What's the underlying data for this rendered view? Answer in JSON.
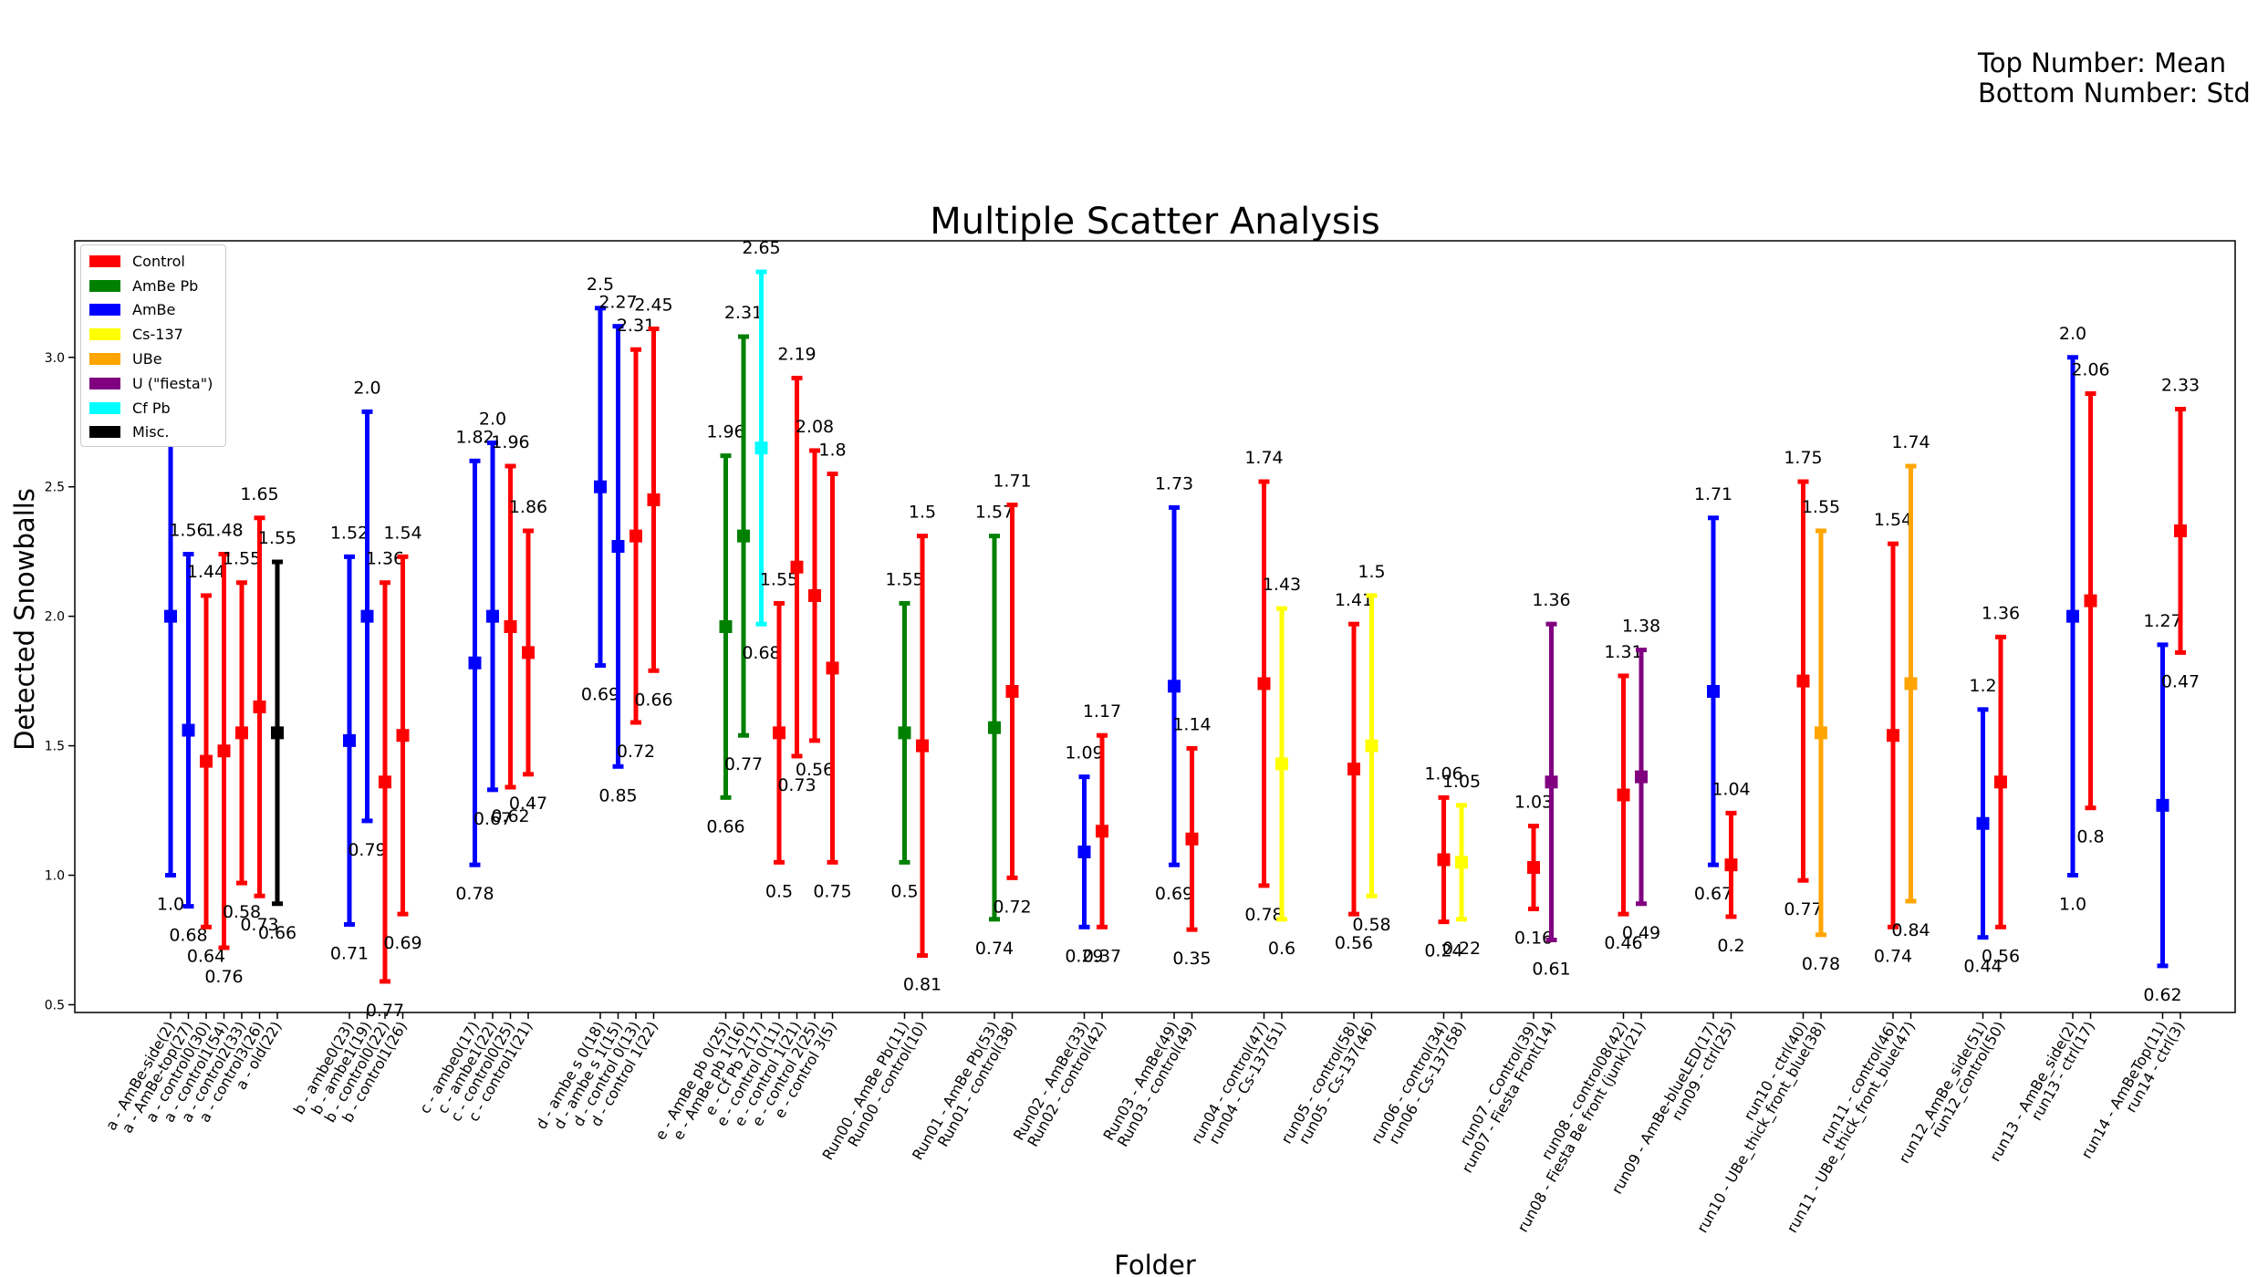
{
  "notes": {
    "line1": "Top Number: Mean",
    "line2": "Bottom Number: Std"
  },
  "legend": [
    {
      "label": "Control",
      "color": "#ff0000"
    },
    {
      "label": "AmBe Pb",
      "color": "#008000"
    },
    {
      "label": "AmBe",
      "color": "#0000ff"
    },
    {
      "label": "Cs-137",
      "color": "#ffff00"
    },
    {
      "label": "UBe",
      "color": "#ffa500"
    },
    {
      "label": "U (\"fiesta\")",
      "color": "#800080"
    },
    {
      "label": "Cf Pb",
      "color": "#00ffff"
    },
    {
      "label": "Misc.",
      "color": "#000000"
    }
  ],
  "chart_data": {
    "type": "scatter",
    "title": "Multiple Scatter Analysis",
    "xlabel": "Folder",
    "ylabel": "Detected Snowballs",
    "ylim": [
      0.47,
      3.45
    ],
    "yticks": [
      0.5,
      1.0,
      1.5,
      2.0,
      2.5,
      3.0
    ],
    "legend_position": "top-left",
    "grid": false,
    "points": [
      {
        "label": "a - AmBe-side(2)",
        "mean": 2.0,
        "std": 1.0,
        "color": "#0000ff",
        "mean_text": "2.0",
        "std_text": "1.0"
      },
      {
        "label": "a - AmBe-top(27)",
        "mean": 1.56,
        "std": 0.68,
        "color": "#0000ff",
        "mean_text": "1.56",
        "std_text": "0.68"
      },
      {
        "label": "a - control0(30)",
        "mean": 1.44,
        "std": 0.64,
        "color": "#ff0000",
        "mean_text": "1.44",
        "std_text": "0.64"
      },
      {
        "label": "a - control1(54)",
        "mean": 1.48,
        "std": 0.76,
        "color": "#ff0000",
        "mean_text": "1.48",
        "std_text": "0.76"
      },
      {
        "label": "a - control2(33)",
        "mean": 1.55,
        "std": 0.58,
        "color": "#ff0000",
        "mean_text": "1.55",
        "std_text": "0.58"
      },
      {
        "label": "a - control3(26)",
        "mean": 1.65,
        "std": 0.73,
        "color": "#ff0000",
        "mean_text": "1.65",
        "std_text": "0.73"
      },
      {
        "label": "a - old(22)",
        "mean": 1.55,
        "std": 0.66,
        "color": "#000000",
        "mean_text": "1.55",
        "std_text": "0.66"
      },
      {
        "label": "b - ambe0(23)",
        "mean": 1.52,
        "std": 0.71,
        "color": "#0000ff",
        "mean_text": "1.52",
        "std_text": "0.71"
      },
      {
        "label": "b - ambe1(19)",
        "mean": 2.0,
        "std": 0.79,
        "color": "#0000ff",
        "mean_text": "2.0",
        "std_text": "0.79"
      },
      {
        "label": "b - control0(22)",
        "mean": 1.36,
        "std": 0.77,
        "color": "#ff0000",
        "mean_text": "1.36",
        "std_text": "0.77"
      },
      {
        "label": "b - control1(26)",
        "mean": 1.54,
        "std": 0.69,
        "color": "#ff0000",
        "mean_text": "1.54",
        "std_text": "0.69"
      },
      {
        "label": "c - ambe0(17)",
        "mean": 1.82,
        "std": 0.78,
        "color": "#0000ff",
        "mean_text": "1.82",
        "std_text": "0.78"
      },
      {
        "label": "c - ambe1(22)",
        "mean": 2.0,
        "std": 0.67,
        "color": "#0000ff",
        "mean_text": "2.0",
        "std_text": "0.67"
      },
      {
        "label": "c - control0(25)",
        "mean": 1.96,
        "std": 0.62,
        "color": "#ff0000",
        "mean_text": "1.96",
        "std_text": "0.62"
      },
      {
        "label": "c - control1(21)",
        "mean": 1.86,
        "std": 0.47,
        "color": "#ff0000",
        "mean_text": "1.86",
        "std_text": "0.47"
      },
      {
        "label": "d - ambe s 0(18)",
        "mean": 2.5,
        "std": 0.69,
        "color": "#0000ff",
        "mean_text": "2.5",
        "std_text": "0.69"
      },
      {
        "label": "d - ambe s 1(15)",
        "mean": 2.27,
        "std": 0.85,
        "color": "#0000ff",
        "mean_text": "2.27",
        "std_text": "0.85"
      },
      {
        "label": "d - control 0(13)",
        "mean": 2.31,
        "std": 0.72,
        "color": "#ff0000",
        "mean_text": "2.31",
        "std_text": "0.72"
      },
      {
        "label": "d - control 1(22)",
        "mean": 2.45,
        "std": 0.66,
        "color": "#ff0000",
        "mean_text": "2.45",
        "std_text": "0.66"
      },
      {
        "label": "e - AmBe pb 0(25)",
        "mean": 1.96,
        "std": 0.66,
        "color": "#008000",
        "mean_text": "1.96",
        "std_text": "0.66"
      },
      {
        "label": "e - AmBe pb 1(16)",
        "mean": 2.31,
        "std": 0.77,
        "color": "#008000",
        "mean_text": "2.31",
        "std_text": "0.77"
      },
      {
        "label": "e - Cf Pb 2(17)",
        "mean": 2.65,
        "std": 0.68,
        "color": "#00ffff",
        "mean_text": "2.65",
        "std_text": "0.68"
      },
      {
        "label": "e - control 0(11)",
        "mean": 1.55,
        "std": 0.5,
        "color": "#ff0000",
        "mean_text": "1.55",
        "std_text": "0.5"
      },
      {
        "label": "e - control 1(21)",
        "mean": 2.19,
        "std": 0.73,
        "color": "#ff0000",
        "mean_text": "2.19",
        "std_text": "0.73"
      },
      {
        "label": "e - control 2(25)",
        "mean": 2.08,
        "std": 0.56,
        "color": "#ff0000",
        "mean_text": "2.08",
        "std_text": "0.56"
      },
      {
        "label": "e - control 3(5)",
        "mean": 1.8,
        "std": 0.75,
        "color": "#ff0000",
        "mean_text": "1.8",
        "std_text": "0.75"
      },
      {
        "label": "Run00 - AmBe Pb(11)",
        "mean": 1.55,
        "std": 0.5,
        "color": "#008000",
        "mean_text": "1.55",
        "std_text": "0.5"
      },
      {
        "label": "Run00 - control(10)",
        "mean": 1.5,
        "std": 0.81,
        "color": "#ff0000",
        "mean_text": "1.5",
        "std_text": "0.81"
      },
      {
        "label": "Run01 - AmBe Pb(53)",
        "mean": 1.57,
        "std": 0.74,
        "color": "#008000",
        "mean_text": "1.57",
        "std_text": "0.74"
      },
      {
        "label": "Run01 - control(38)",
        "mean": 1.71,
        "std": 0.72,
        "color": "#ff0000",
        "mean_text": "1.71",
        "std_text": "0.72"
      },
      {
        "label": "Run02 - AmBe(33)",
        "mean": 1.09,
        "std": 0.29,
        "color": "#0000ff",
        "mean_text": "1.09",
        "std_text": "0.29"
      },
      {
        "label": "Run02 - control(42)",
        "mean": 1.17,
        "std": 0.37,
        "color": "#ff0000",
        "mean_text": "1.17",
        "std_text": "0.37"
      },
      {
        "label": "Run03 - AmBe(49)",
        "mean": 1.73,
        "std": 0.69,
        "color": "#0000ff",
        "mean_text": "1.73",
        "std_text": "0.69"
      },
      {
        "label": "Run03 - control(49)",
        "mean": 1.14,
        "std": 0.35,
        "color": "#ff0000",
        "mean_text": "1.14",
        "std_text": "0.35"
      },
      {
        "label": "run04 - control(47)",
        "mean": 1.74,
        "std": 0.78,
        "color": "#ff0000",
        "mean_text": "1.74",
        "std_text": "0.78"
      },
      {
        "label": "run04 - Cs-137(51)",
        "mean": 1.43,
        "std": 0.6,
        "color": "#ffff00",
        "mean_text": "1.43",
        "std_text": "0.6"
      },
      {
        "label": "run05 - control(58)",
        "mean": 1.41,
        "std": 0.56,
        "color": "#ff0000",
        "mean_text": "1.41",
        "std_text": "0.56"
      },
      {
        "label": "run05 - Cs-137(46)",
        "mean": 1.5,
        "std": 0.58,
        "color": "#ffff00",
        "mean_text": "1.5",
        "std_text": "0.58"
      },
      {
        "label": "run06 - control(34)",
        "mean": 1.06,
        "std": 0.24,
        "color": "#ff0000",
        "mean_text": "1.06",
        "std_text": "0.24"
      },
      {
        "label": "run06 - Cs-137(58)",
        "mean": 1.05,
        "std": 0.22,
        "color": "#ffff00",
        "mean_text": "1.05",
        "std_text": "0.22"
      },
      {
        "label": "run07 - Control(39)",
        "mean": 1.03,
        "std": 0.16,
        "color": "#ff0000",
        "mean_text": "1.03",
        "std_text": "0.16"
      },
      {
        "label": "run07 - Fiesta Front(14)",
        "mean": 1.36,
        "std": 0.61,
        "color": "#800080",
        "mean_text": "1.36",
        "std_text": "0.61"
      },
      {
        "label": "run08 - control08(42)",
        "mean": 1.31,
        "std": 0.46,
        "color": "#ff0000",
        "mean_text": "1.31",
        "std_text": "0.46"
      },
      {
        "label": "run08 - Fiesta Be front (junk)(21)",
        "mean": 1.38,
        "std": 0.49,
        "color": "#800080",
        "mean_text": "1.38",
        "std_text": "0.49"
      },
      {
        "label": "run09 - AmBe-blueLED(17)",
        "mean": 1.71,
        "std": 0.67,
        "color": "#0000ff",
        "mean_text": "1.71",
        "std_text": "0.67"
      },
      {
        "label": "run09 - ctrl(25)",
        "mean": 1.04,
        "std": 0.2,
        "color": "#ff0000",
        "mean_text": "1.04",
        "std_text": "0.2"
      },
      {
        "label": "run10 - ctrl(40)",
        "mean": 1.75,
        "std": 0.77,
        "color": "#ff0000",
        "mean_text": "1.75",
        "std_text": "0.77"
      },
      {
        "label": "run10 - UBe_thick_front_blue(38)",
        "mean": 1.55,
        "std": 0.78,
        "color": "#ffa500",
        "mean_text": "1.55",
        "std_text": "0.78"
      },
      {
        "label": "run11 - control(46)",
        "mean": 1.54,
        "std": 0.74,
        "color": "#ff0000",
        "mean_text": "1.54",
        "std_text": "0.74"
      },
      {
        "label": "run11 - UBe_thick_front_blue(47)",
        "mean": 1.74,
        "std": 0.84,
        "color": "#ffa500",
        "mean_text": "1.74",
        "std_text": "0.84"
      },
      {
        "label": "run12_AmBe_side(51)",
        "mean": 1.2,
        "std": 0.44,
        "color": "#0000ff",
        "mean_text": "1.2",
        "std_text": "0.44"
      },
      {
        "label": "run12_control(50)",
        "mean": 1.36,
        "std": 0.56,
        "color": "#ff0000",
        "mean_text": "1.36",
        "std_text": "0.56"
      },
      {
        "label": "run13 - AmBe_side(2)",
        "mean": 2.0,
        "std": 1.0,
        "color": "#0000ff",
        "mean_text": "2.0",
        "std_text": "1.0"
      },
      {
        "label": "run13 - ctrl(17)",
        "mean": 2.06,
        "std": 0.8,
        "color": "#ff0000",
        "mean_text": "2.06",
        "std_text": "0.8"
      },
      {
        "label": "run14 - AmBeTop(11)",
        "mean": 1.27,
        "std": 0.62,
        "color": "#0000ff",
        "mean_text": "1.27",
        "std_text": "0.62"
      },
      {
        "label": "run14 - ctrl(3)",
        "mean": 2.33,
        "std": 0.47,
        "color": "#ff0000",
        "mean_text": "2.33",
        "std_text": "0.47"
      }
    ]
  }
}
